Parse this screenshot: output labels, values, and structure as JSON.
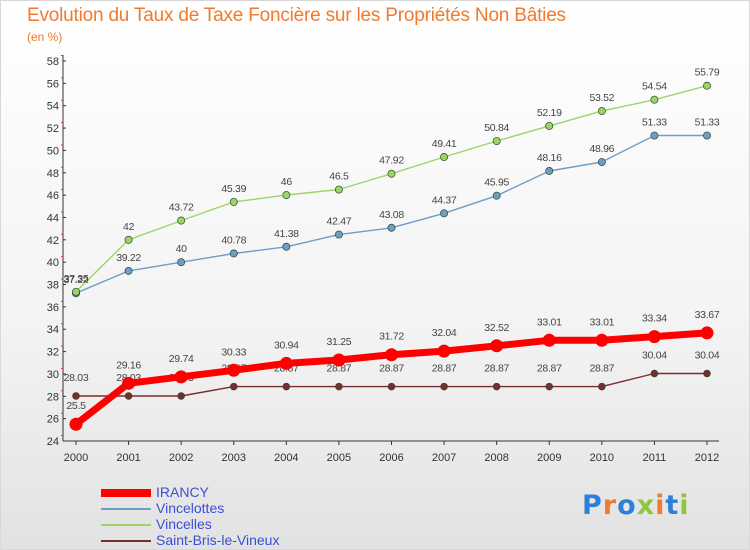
{
  "header": {
    "title": "Evolution du Taux de Taxe Foncière sur les Propriétés Non Bâties",
    "subtitle": "(en %)"
  },
  "brand": {
    "text": "Proxiti",
    "letter_colors": [
      "#2f7fd8",
      "#f07a2e",
      "#2f7fd8",
      "#8cc63f",
      "#f07a2e",
      "#2f7fd8",
      "#8cc63f"
    ]
  },
  "chart_data": {
    "type": "line",
    "title": "Evolution du Taux de Taxe Foncière sur les Propriétés Non Bâties",
    "ylabel": "(en %)",
    "x": [
      "2000",
      "2001",
      "2002",
      "2003",
      "2004",
      "2005",
      "2006",
      "2007",
      "2008",
      "2009",
      "2010",
      "2011",
      "2012"
    ],
    "ylim": [
      24,
      58
    ],
    "yticks": [
      24,
      26,
      28,
      30,
      32,
      34,
      36,
      38,
      40,
      42,
      44,
      46,
      48,
      50,
      52,
      54,
      56,
      58
    ],
    "grid": false,
    "legend_position": "bottom-left",
    "series": [
      {
        "name": "IRANCY",
        "color": "#ff0000",
        "values": [
          25.5,
          29.16,
          29.74,
          30.33,
          30.94,
          31.25,
          31.72,
          32.04,
          32.52,
          33.01,
          33.01,
          33.34,
          33.67
        ],
        "labels": [
          "25.5",
          "29.16",
          "29.74",
          "30.33",
          "30.94",
          "31.25",
          "31.72",
          "32.04",
          "32.52",
          "33.01",
          "33.01",
          "33.34",
          "33.67"
        ]
      },
      {
        "name": "Vincelottes",
        "color": "#6f9cc9",
        "values": [
          37.22,
          39.22,
          40,
          40.78,
          41.38,
          42.47,
          43.08,
          44.37,
          45.95,
          48.16,
          48.96,
          51.33,
          51.33
        ],
        "labels": [
          "37.22",
          "39.22",
          "40",
          "40.78",
          "41.38",
          "42.47",
          "43.08",
          "44.37",
          "45.95",
          "48.16",
          "48.96",
          "51.33",
          "51.33"
        ]
      },
      {
        "name": "Vincelles",
        "color": "#9ed36a",
        "values": [
          37.35,
          42,
          43.72,
          45.39,
          46,
          46.5,
          47.92,
          49.41,
          50.84,
          52.19,
          53.52,
          54.54,
          55.79
        ],
        "labels": [
          "37.35",
          "42",
          "43.72",
          "45.39",
          "46",
          "46.5",
          "47.92",
          "49.41",
          "50.84",
          "52.19",
          "53.52",
          "54.54",
          "55.79"
        ]
      },
      {
        "name": "Saint-Bris-le-Vineux",
        "color": "#7a2d2d",
        "values": [
          28.03,
          28.03,
          28.03,
          28.87,
          28.87,
          28.87,
          28.87,
          28.87,
          28.87,
          28.87,
          28.87,
          30.04,
          30.04
        ],
        "labels": [
          "28.03",
          "28.03",
          "28.03",
          "28.87",
          "28.87",
          "28.87",
          "28.87",
          "28.87",
          "28.87",
          "28.87",
          "28.87",
          "30.04",
          "30.04"
        ]
      }
    ]
  }
}
